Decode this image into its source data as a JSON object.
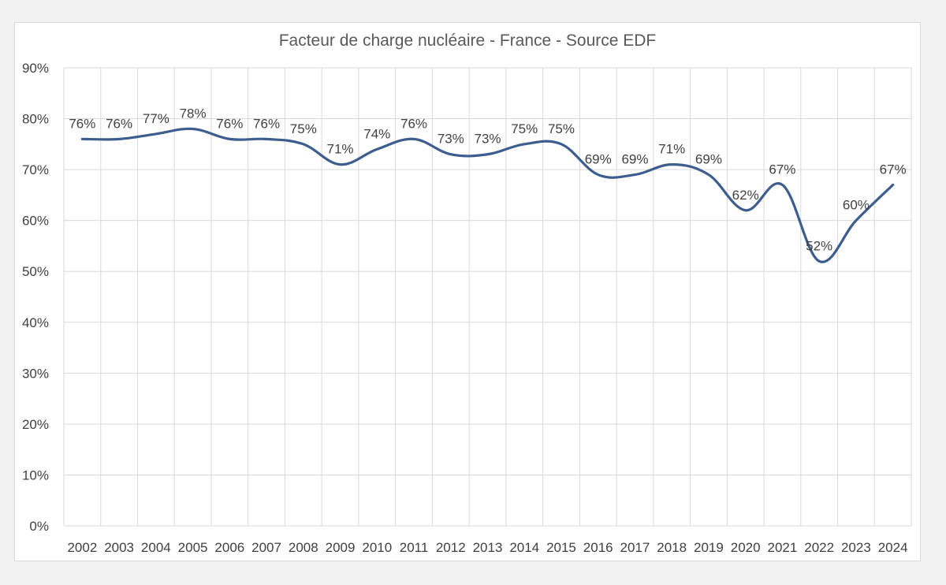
{
  "chart_data": {
    "type": "line",
    "title": "Facteur de charge nucléaire - France - Source EDF",
    "xlabel": "",
    "ylabel": "",
    "categories": [
      "2002",
      "2003",
      "2004",
      "2005",
      "2006",
      "2007",
      "2008",
      "2009",
      "2010",
      "2011",
      "2012",
      "2013",
      "2014",
      "2015",
      "2016",
      "2017",
      "2018",
      "2019",
      "2020",
      "2021",
      "2022",
      "2023",
      "2024"
    ],
    "series": [
      {
        "values": [
          76,
          76,
          77,
          78,
          76,
          76,
          75,
          71,
          74,
          76,
          73,
          73,
          75,
          75,
          69,
          69,
          71,
          69,
          62,
          67,
          52,
          60,
          67
        ],
        "data_labels": [
          "76%",
          "76%",
          "77%",
          "78%",
          "76%",
          "76%",
          "75%",
          "71%",
          "74%",
          "76%",
          "73%",
          "73%",
          "75%",
          "75%",
          "69%",
          "69%",
          "71%",
          "69%",
          "62%",
          "67%",
          "52%",
          "60%",
          "67%"
        ],
        "color": "#3d5d8f"
      }
    ],
    "ylim": [
      0,
      90
    ],
    "y_ticks": [
      0,
      10,
      20,
      30,
      40,
      50,
      60,
      70,
      80,
      90
    ],
    "y_tick_labels": [
      "0%",
      "10%",
      "20%",
      "30%",
      "40%",
      "50%",
      "60%",
      "70%",
      "80%",
      "90%"
    ],
    "grid": true,
    "smooth": true,
    "legend": "none"
  }
}
